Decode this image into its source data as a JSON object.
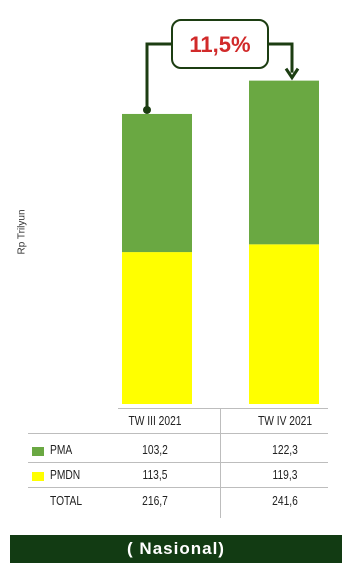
{
  "chart_data": {
    "type": "bar",
    "stacked": true,
    "categories": [
      "TW III 2021",
      "TW IV 2021"
    ],
    "series": [
      {
        "name": "PMDN",
        "values": [
          113.5,
          119.3
        ],
        "color": "#ffff00"
      },
      {
        "name": "PMA",
        "values": [
          103.2,
          122.3
        ],
        "color": "#6aa842"
      }
    ],
    "ylabel": "Rp Trilyun",
    "growth_label": "11,5%",
    "ylim": [
      0,
      260
    ],
    "grid": false,
    "legend": "table-below"
  },
  "table": {
    "headers": [
      "TW III 2021",
      "TW IV 2021"
    ],
    "rows": [
      {
        "label": "PMA",
        "values": [
          "103,2",
          "122,3"
        ],
        "swatch": "#6aa842"
      },
      {
        "label": "PMDN",
        "values": [
          "113,5",
          "119,3"
        ],
        "swatch": "#ffff00"
      },
      {
        "label": "TOTAL",
        "values": [
          "216,7",
          "241,6"
        ]
      }
    ]
  },
  "footer": {
    "label": "( Nasional)"
  },
  "colors": {
    "arrow": "#1c3d12",
    "growth_text": "#d12a2a",
    "footer_bg": "#123b13"
  }
}
